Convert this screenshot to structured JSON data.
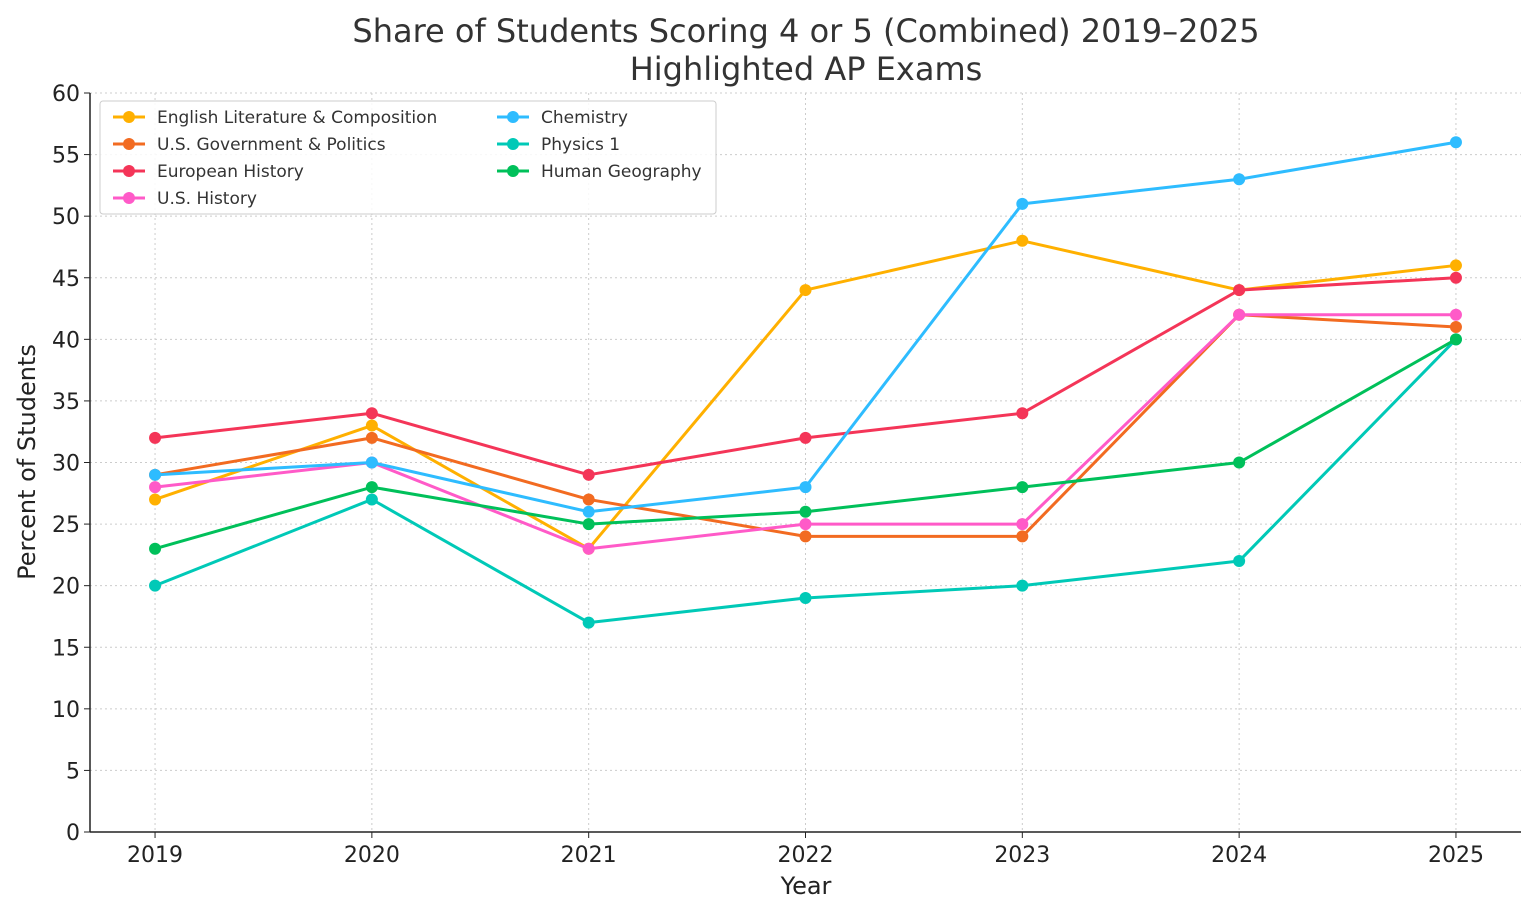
{
  "chart_data": {
    "type": "line",
    "title": "Share of Students Scoring 4 or 5 (Combined) 2019–2025",
    "subtitle": "Highlighted AP Exams",
    "xlabel": "Year",
    "ylabel": "Percent of Students",
    "x": [
      2019,
      2020,
      2021,
      2022,
      2023,
      2024,
      2025
    ],
    "xlim": [
      2018.7,
      2025.3
    ],
    "ylim": [
      0,
      60
    ],
    "yticks": [
      0,
      5,
      10,
      15,
      20,
      25,
      30,
      35,
      40,
      45,
      50,
      55,
      60
    ],
    "grid": true,
    "legend_placement": "top-left",
    "series": [
      {
        "name": "English Literature & Composition",
        "color": "#ffb000",
        "values": [
          27,
          33,
          23,
          44,
          48,
          44,
          46
        ]
      },
      {
        "name": "U.S. Government & Politics",
        "color": "#f26b21",
        "values": [
          29,
          32,
          27,
          24,
          24,
          42,
          41
        ]
      },
      {
        "name": "European History",
        "color": "#f43558",
        "values": [
          32,
          34,
          29,
          32,
          34,
          44,
          45
        ]
      },
      {
        "name": "U.S. History",
        "color": "#ff5ac8",
        "values": [
          28,
          30,
          23,
          25,
          25,
          42,
          42
        ]
      },
      {
        "name": "Chemistry",
        "color": "#2ebcff",
        "values": [
          29,
          30,
          26,
          28,
          51,
          53,
          56
        ]
      },
      {
        "name": "Physics 1",
        "color": "#00c9b7",
        "values": [
          20,
          27,
          17,
          19,
          20,
          22,
          40
        ]
      },
      {
        "name": "Human Geography",
        "color": "#00c05a",
        "values": [
          23,
          28,
          25,
          26,
          28,
          30,
          40
        ]
      }
    ]
  }
}
